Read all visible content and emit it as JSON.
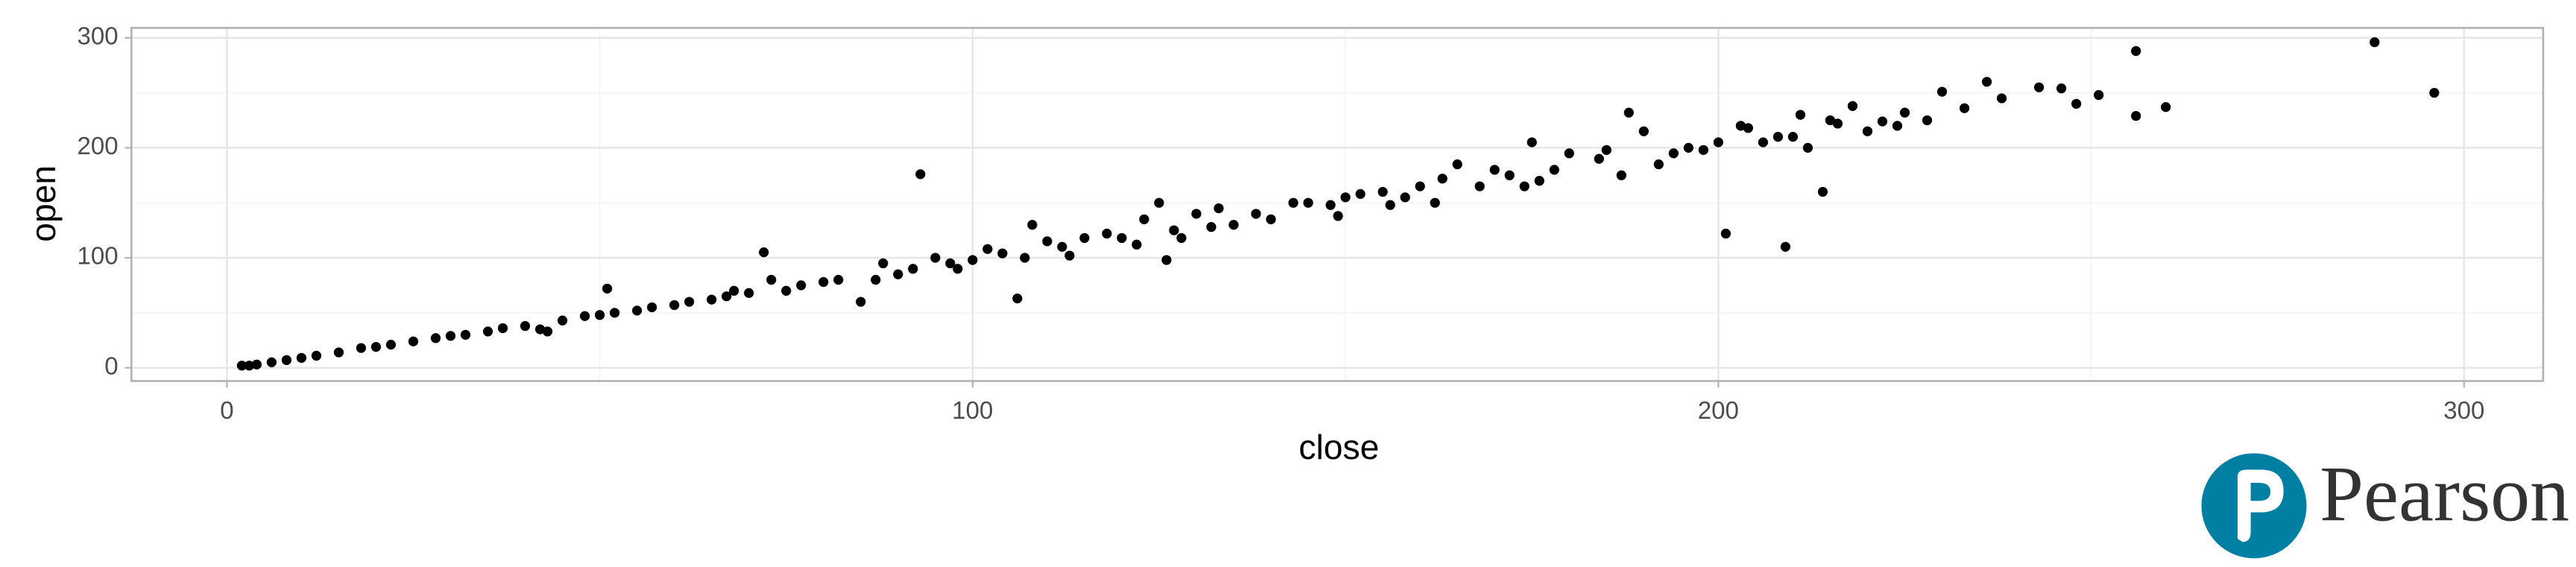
{
  "chart_data": {
    "type": "scatter",
    "x_label": "close",
    "y_label": "open",
    "color": "#000000",
    "grid": true,
    "xlim": [
      -12.8,
      310.6
    ],
    "ylim": [
      -12,
      309
    ],
    "xticks": [
      0,
      100,
      200,
      300
    ],
    "yticks": [
      0,
      100,
      200,
      300
    ],
    "xminor": [
      50,
      150,
      250
    ],
    "yminor": [
      50,
      150,
      250
    ],
    "x": [
      2,
      3,
      4,
      6,
      8,
      10,
      12,
      15,
      18,
      20,
      22,
      25,
      28,
      30,
      32,
      35,
      37,
      40,
      42,
      43,
      45,
      48,
      50,
      51,
      52,
      55,
      57,
      60,
      62,
      65,
      67,
      68,
      70,
      72,
      73,
      75,
      77,
      80,
      82,
      85,
      87,
      88,
      90,
      92,
      93,
      95,
      97,
      98,
      100,
      102,
      104,
      106,
      107,
      108,
      110,
      112,
      113,
      115,
      118,
      120,
      122,
      123,
      125,
      126,
      127,
      128,
      130,
      132,
      133,
      135,
      138,
      140,
      143,
      145,
      148,
      149,
      150,
      152,
      155,
      156,
      158,
      160,
      162,
      163,
      165,
      168,
      170,
      172,
      174,
      175,
      176,
      178,
      180,
      184,
      185,
      187,
      188,
      190,
      192,
      194,
      196,
      198,
      200,
      201,
      203,
      204,
      206,
      208,
      209,
      210,
      211,
      212,
      214,
      215,
      216,
      218,
      220,
      222,
      224,
      225,
      228,
      230,
      233,
      236,
      238,
      243,
      246,
      248,
      251,
      256,
      256,
      260,
      288,
      296
    ],
    "values": [
      2,
      2,
      3,
      5,
      7,
      9,
      11,
      14,
      18,
      19,
      21,
      24,
      27,
      29,
      30,
      33,
      36,
      38,
      35,
      33,
      43,
      47,
      48,
      72,
      50,
      52,
      55,
      57,
      60,
      62,
      65,
      70,
      68,
      105,
      80,
      70,
      75,
      78,
      80,
      60,
      80,
      95,
      85,
      90,
      176,
      100,
      95,
      90,
      98,
      108,
      104,
      63,
      100,
      130,
      115,
      110,
      102,
      118,
      122,
      118,
      112,
      135,
      150,
      98,
      125,
      118,
      140,
      128,
      145,
      130,
      140,
      135,
      150,
      150,
      148,
      138,
      155,
      158,
      160,
      148,
      155,
      165,
      150,
      172,
      185,
      165,
      180,
      175,
      165,
      205,
      170,
      180,
      195,
      190,
      198,
      175,
      232,
      215,
      185,
      195,
      200,
      198,
      205,
      122,
      220,
      218,
      205,
      210,
      110,
      210,
      230,
      200,
      160,
      225,
      222,
      238,
      215,
      224,
      220,
      232,
      225,
      251,
      236,
      260,
      245,
      255,
      254,
      240,
      248,
      288,
      229,
      237,
      296,
      250
    ]
  },
  "logo": {
    "text": "Pearson"
  }
}
